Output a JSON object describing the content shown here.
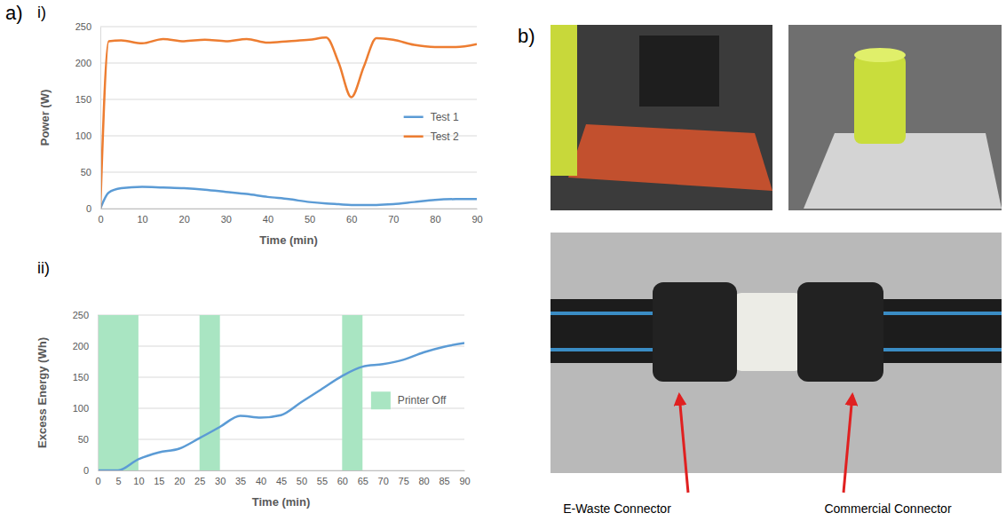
{
  "chart_data": [
    {
      "type": "line",
      "x_label": "Time (min)",
      "y_label": "Power (W)",
      "x": [
        0,
        2,
        5,
        10,
        15,
        20,
        25,
        30,
        35,
        40,
        45,
        50,
        54,
        57,
        60,
        63,
        66,
        70,
        75,
        80,
        85,
        90
      ],
      "series": [
        {
          "name": "Test 1",
          "color": "#5b9bd5",
          "values": [
            0,
            22,
            28,
            30,
            29,
            28,
            26,
            23,
            20,
            16,
            13,
            9,
            7,
            6,
            5,
            5,
            5,
            6,
            9,
            12,
            13,
            13
          ]
        },
        {
          "name": "Test 2",
          "color": "#ed7d31",
          "values": [
            0,
            230,
            231,
            227,
            233,
            230,
            232,
            230,
            233,
            228,
            230,
            232,
            235,
            200,
            153,
            195,
            234,
            232,
            225,
            222,
            222,
            226
          ]
        }
      ],
      "xlim": [
        0,
        90
      ],
      "xticks": [
        0,
        10,
        20,
        30,
        40,
        50,
        60,
        70,
        80,
        90
      ],
      "ylim": [
        0,
        250
      ],
      "yticks": [
        0,
        50,
        100,
        150,
        200,
        250
      ],
      "grid": true,
      "legend": "right"
    },
    {
      "type": "line",
      "x_label": "Time (min)",
      "y_label": "Excess Energy  (Wh)",
      "x": [
        0,
        5,
        10,
        15,
        20,
        25,
        30,
        35,
        40,
        45,
        50,
        55,
        60,
        65,
        70,
        75,
        80,
        85,
        90
      ],
      "series": [
        {
          "color": "#5b9bd5",
          "values": [
            0,
            0,
            18,
            29,
            35,
            52,
            70,
            88,
            85,
            89,
            110,
            131,
            152,
            167,
            171,
            178,
            190,
            199,
            205
          ]
        }
      ],
      "shaded_regions": {
        "name": "Printer Off",
        "color": "#a9e5c2",
        "intervals": [
          [
            0,
            10
          ],
          [
            25,
            30
          ],
          [
            60,
            65
          ]
        ]
      },
      "xlim": [
        0,
        90
      ],
      "xticks": [
        0,
        5,
        10,
        15,
        20,
        25,
        30,
        35,
        40,
        45,
        50,
        55,
        60,
        65,
        70,
        75,
        80,
        85,
        90
      ],
      "ylim": [
        0,
        250
      ],
      "yticks": [
        0,
        50,
        100,
        150,
        200,
        250
      ],
      "grid": true,
      "legend": "right"
    }
  ],
  "figure": {
    "panel_labels": [
      "a)",
      "b)"
    ],
    "subpanel_labels": [
      "i)",
      "ii)"
    ],
    "photo_annotations": [
      "E-Waste Connector",
      "Commercial Connector"
    ]
  }
}
